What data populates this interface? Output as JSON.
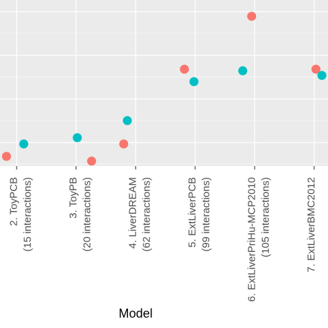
{
  "chart_data": {
    "type": "scatter",
    "xlabel": "Model",
    "ylabel": "",
    "categories": [
      [
        "",
        ""
      ],
      [
        "2. ToyPCB",
        "(15 interactions)"
      ],
      [
        "3. ToyPB",
        "(20 interactions)"
      ],
      [
        "4. LiverDREAM",
        "(62 interactions)"
      ],
      [
        "5. ExtLiverPCB",
        "(99 interactions)"
      ],
      [
        "6. ExtLiverPriHu-MCP2010",
        "(105 interactions)"
      ],
      [
        "7. ExtLiverBMC2012",
        ""
      ]
    ],
    "ylim": [
      0,
      1
    ],
    "grid": true,
    "legend": "none",
    "colors": {
      "salmon": "#F8766D",
      "teal": "#00BFC4",
      "panel": "#EBEBEB",
      "grid": "#ffffff"
    },
    "series": [
      {
        "color": "salmon",
        "points": [
          {
            "x": 2,
            "jitter": -0.17,
            "y": 0.04
          },
          {
            "x": 3,
            "jitter": 0.26,
            "y": 0.01
          },
          {
            "x": 4,
            "jitter": -0.2,
            "y": 0.12
          },
          {
            "x": 5,
            "jitter": -0.18,
            "y": 0.6
          },
          {
            "x": 6,
            "jitter": -0.05,
            "y": 0.94
          },
          {
            "x": 7,
            "jitter": 0.03,
            "y": 0.6
          }
        ]
      },
      {
        "color": "teal",
        "points": [
          {
            "x": 2,
            "jitter": 0.12,
            "y": 0.12
          },
          {
            "x": 3,
            "jitter": 0.02,
            "y": 0.16
          },
          {
            "x": 4,
            "jitter": -0.14,
            "y": 0.27
          },
          {
            "x": 5,
            "jitter": -0.02,
            "y": 0.52
          },
          {
            "x": 6,
            "jitter": -0.2,
            "y": 0.59
          },
          {
            "x": 7,
            "jitter": 0.13,
            "y": 0.56
          }
        ]
      }
    ]
  }
}
